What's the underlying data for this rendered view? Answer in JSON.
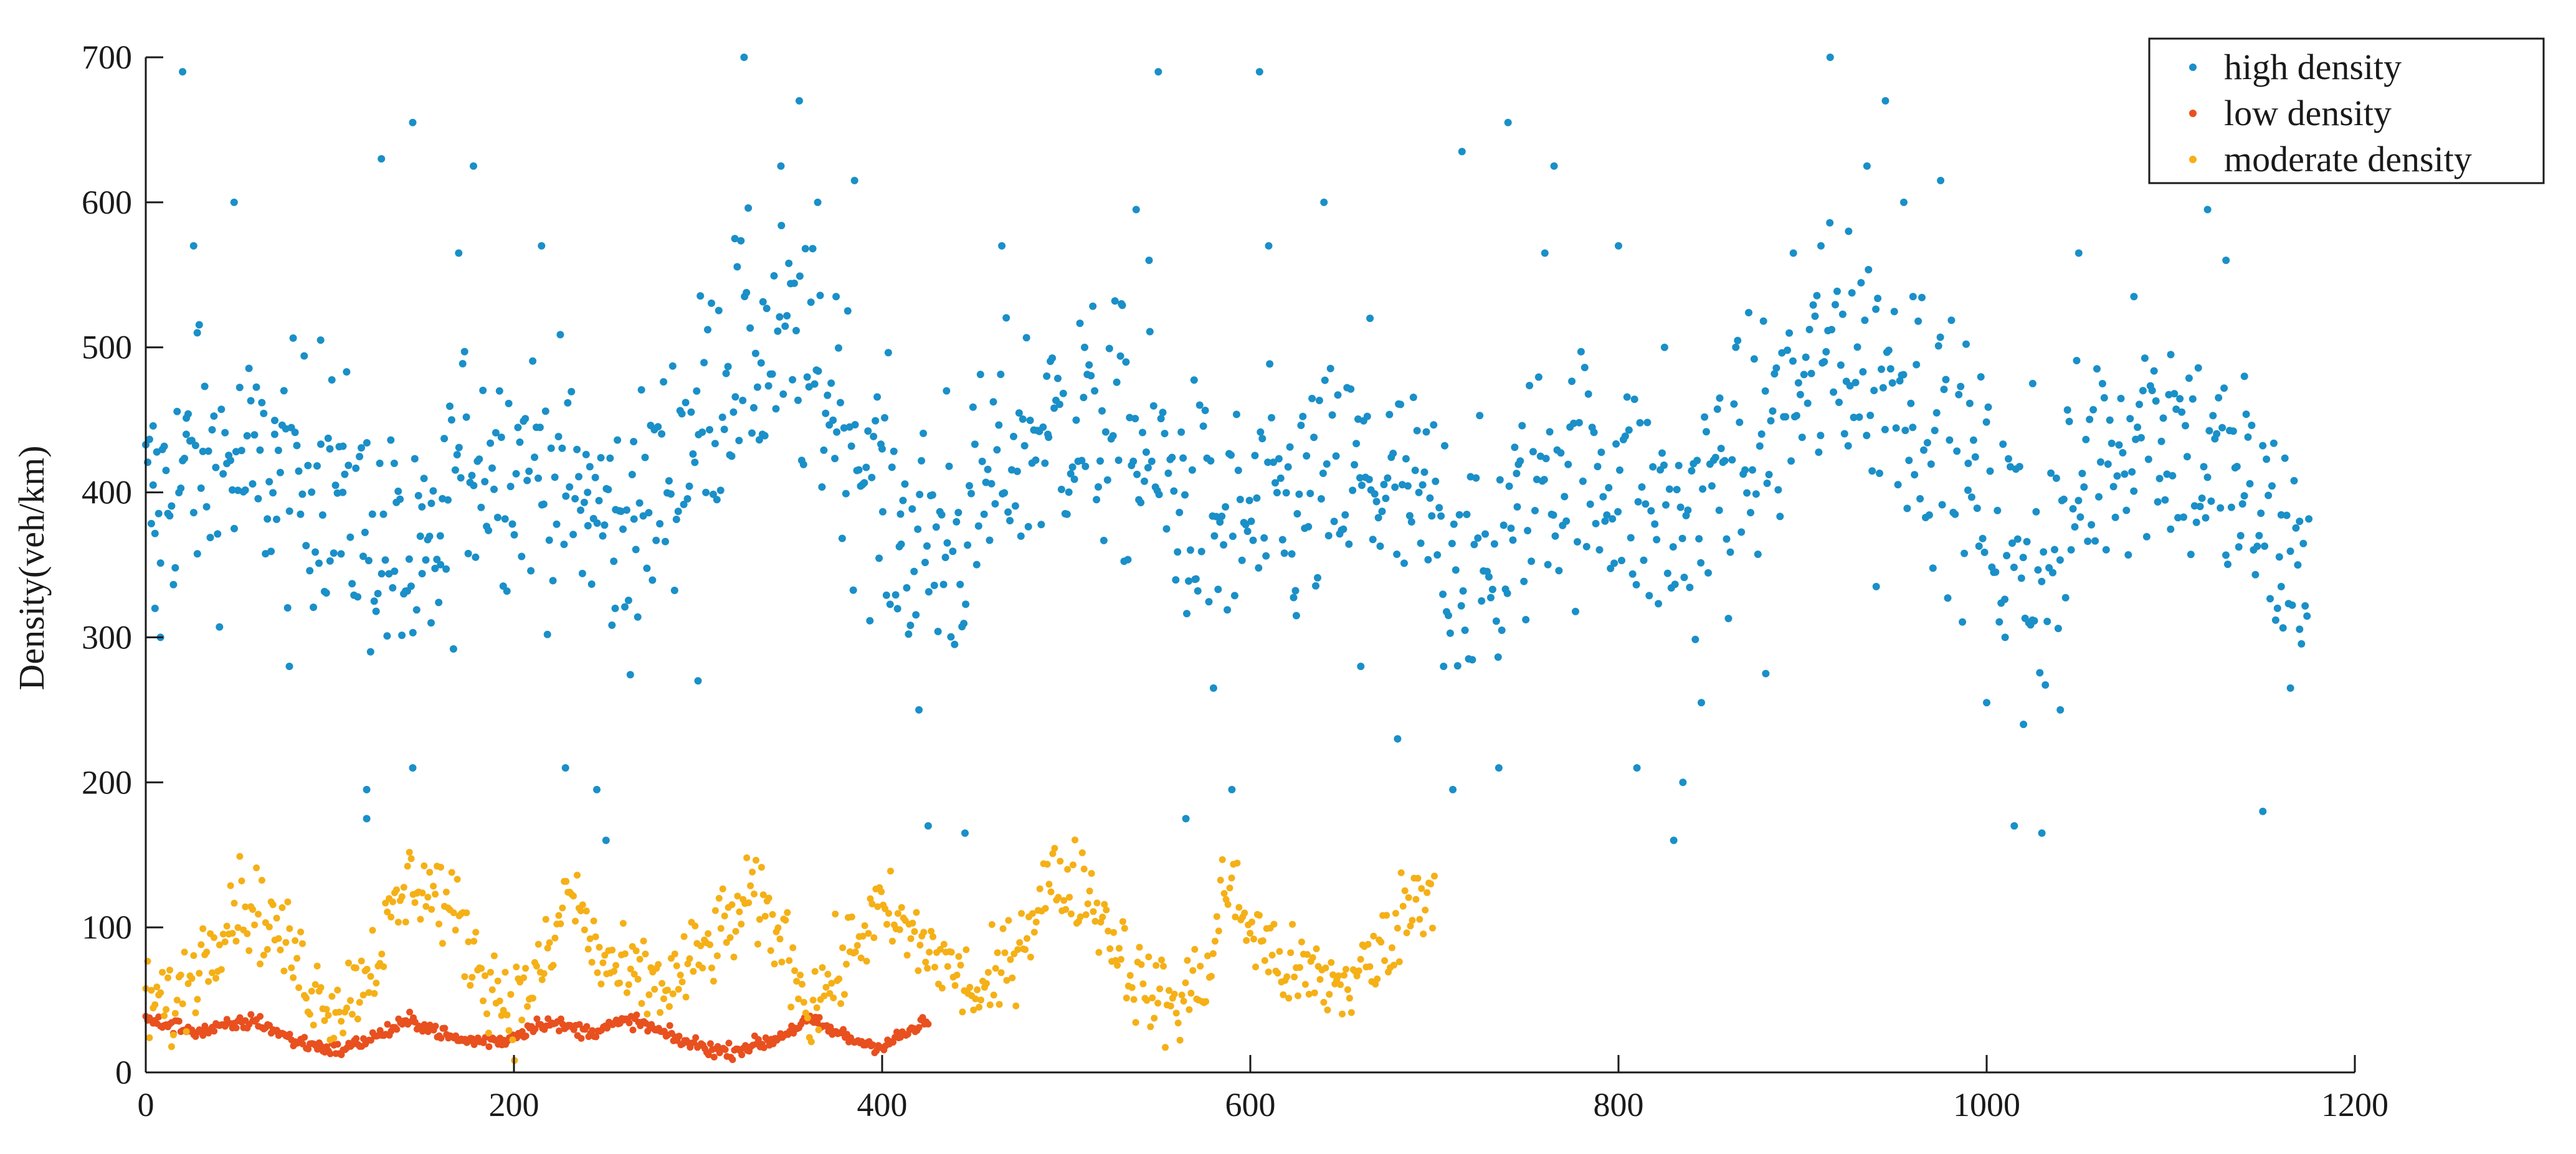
{
  "chart_data": {
    "type": "scatter",
    "title": "",
    "xlabel": "",
    "ylabel": "Density(veh/km)",
    "xlim": [
      0,
      1200
    ],
    "ylim": [
      0,
      700
    ],
    "x_ticks": [
      0,
      200,
      400,
      600,
      800,
      1000,
      1200
    ],
    "y_ticks": [
      0,
      100,
      200,
      300,
      400,
      500,
      600,
      700
    ],
    "grid": false,
    "legend_position": "top-right",
    "series": [
      {
        "name": "high density",
        "color": "#1a8fc8",
        "n_points": 1175,
        "x_range": [
          0,
          1175
        ],
        "pattern": "repeats with period ~585 (two cycles)",
        "trend_anchors": [
          [
            0,
            390
          ],
          [
            30,
            420
          ],
          [
            60,
            415
          ],
          [
            100,
            405
          ],
          [
            130,
            360
          ],
          [
            150,
            330
          ],
          [
            175,
            430
          ],
          [
            210,
            420
          ],
          [
            240,
            390
          ],
          [
            265,
            370
          ],
          [
            290,
            430
          ],
          [
            320,
            490
          ],
          [
            350,
            500
          ],
          [
            380,
            450
          ],
          [
            410,
            370
          ],
          [
            440,
            360
          ],
          [
            470,
            430
          ],
          [
            500,
            450
          ],
          [
            530,
            440
          ],
          [
            560,
            400
          ],
          [
            585,
            370
          ],
          [
            620,
            390
          ],
          [
            660,
            410
          ],
          [
            700,
            380
          ],
          [
            730,
            340
          ],
          [
            760,
            420
          ],
          [
            800,
            410
          ],
          [
            830,
            370
          ],
          [
            880,
            440
          ],
          [
            920,
            500
          ],
          [
            960,
            470
          ],
          [
            1000,
            390
          ],
          [
            1030,
            340
          ],
          [
            1060,
            430
          ],
          [
            1090,
            450
          ],
          [
            1120,
            420
          ],
          [
            1150,
            380
          ],
          [
            1175,
            345
          ]
        ],
        "sample_points": [
          [
            4,
            405
          ],
          [
            5,
            320
          ],
          [
            8,
            300
          ],
          [
            20,
            690
          ],
          [
            22,
            440
          ],
          [
            26,
            570
          ],
          [
            28,
            510
          ],
          [
            48,
            600
          ],
          [
            70,
            440
          ],
          [
            78,
            280
          ],
          [
            95,
            505
          ],
          [
            100,
            430
          ],
          [
            107,
            400
          ],
          [
            120,
            175
          ],
          [
            120,
            195
          ],
          [
            128,
            630
          ],
          [
            135,
            420
          ],
          [
            145,
            655
          ],
          [
            145,
            210
          ],
          [
            150,
            390
          ],
          [
            155,
            310
          ],
          [
            160,
            370
          ],
          [
            170,
            565
          ],
          [
            178,
            625
          ],
          [
            215,
            570
          ],
          [
            228,
            210
          ],
          [
            240,
            400
          ],
          [
            245,
            195
          ],
          [
            250,
            160
          ],
          [
            255,
            320
          ],
          [
            265,
            435
          ],
          [
            300,
            270
          ],
          [
            320,
            575
          ],
          [
            325,
            700
          ],
          [
            335,
            440
          ],
          [
            345,
            625
          ],
          [
            355,
            670
          ],
          [
            365,
            600
          ],
          [
            375,
            535
          ],
          [
            385,
            615
          ],
          [
            400,
            430
          ],
          [
            410,
            385
          ],
          [
            420,
            250
          ],
          [
            425,
            170
          ],
          [
            435,
            470
          ],
          [
            445,
            165
          ],
          [
            465,
            570
          ],
          [
            490,
            440
          ],
          [
            510,
            500
          ],
          [
            530,
            530
          ],
          [
            538,
            595
          ],
          [
            545,
            560
          ],
          [
            550,
            690
          ],
          [
            565,
            175
          ],
          [
            570,
            340
          ],
          [
            580,
            265
          ],
          [
            590,
            195
          ],
          [
            605,
            690
          ],
          [
            610,
            570
          ],
          [
            625,
            315
          ],
          [
            640,
            600
          ],
          [
            660,
            280
          ],
          [
            665,
            520
          ],
          [
            680,
            230
          ],
          [
            705,
            280
          ],
          [
            710,
            195
          ],
          [
            715,
            635
          ],
          [
            735,
            210
          ],
          [
            740,
            655
          ],
          [
            745,
            390
          ],
          [
            760,
            565
          ],
          [
            765,
            625
          ],
          [
            800,
            570
          ],
          [
            810,
            210
          ],
          [
            825,
            500
          ],
          [
            830,
            160
          ],
          [
            835,
            200
          ],
          [
            845,
            255
          ],
          [
            855,
            465
          ],
          [
            880,
            275
          ],
          [
            895,
            565
          ],
          [
            910,
            570
          ],
          [
            915,
            700
          ],
          [
            925,
            580
          ],
          [
            935,
            625
          ],
          [
            940,
            335
          ],
          [
            945,
            670
          ],
          [
            955,
            600
          ],
          [
            960,
            535
          ],
          [
            975,
            615
          ],
          [
            990,
            420
          ],
          [
            1000,
            255
          ],
          [
            1010,
            300
          ],
          [
            1015,
            170
          ],
          [
            1020,
            240
          ],
          [
            1025,
            475
          ],
          [
            1030,
            165
          ],
          [
            1040,
            250
          ],
          [
            1050,
            565
          ],
          [
            1080,
            535
          ],
          [
            1100,
            495
          ],
          [
            1120,
            595
          ],
          [
            1130,
            560
          ],
          [
            1140,
            480
          ],
          [
            1150,
            180
          ],
          [
            1160,
            335
          ],
          [
            1165,
            265
          ],
          [
            1170,
            380
          ]
        ]
      },
      {
        "name": "low density",
        "color": "#e8501f",
        "n_points": 425,
        "x_range": [
          0,
          425
        ],
        "trend_anchors": [
          [
            0,
            36
          ],
          [
            30,
            28
          ],
          [
            60,
            36
          ],
          [
            80,
            22
          ],
          [
            105,
            15
          ],
          [
            125,
            25
          ],
          [
            145,
            36
          ],
          [
            170,
            22
          ],
          [
            195,
            22
          ],
          [
            215,
            35
          ],
          [
            240,
            28
          ],
          [
            265,
            36
          ],
          [
            290,
            22
          ],
          [
            315,
            14
          ],
          [
            340,
            22
          ],
          [
            360,
            36
          ],
          [
            385,
            22
          ],
          [
            400,
            18
          ],
          [
            425,
            35
          ]
        ]
      },
      {
        "name": "moderate density",
        "color": "#f5b017",
        "n_points": 700,
        "x_range": [
          0,
          700
        ],
        "trend_anchors": [
          [
            0,
            50
          ],
          [
            15,
            45
          ],
          [
            35,
            90
          ],
          [
            50,
            120
          ],
          [
            70,
            100
          ],
          [
            90,
            60
          ],
          [
            105,
            45
          ],
          [
            125,
            80
          ],
          [
            145,
            135
          ],
          [
            165,
            115
          ],
          [
            185,
            65
          ],
          [
            200,
            45
          ],
          [
            220,
            80
          ],
          [
            230,
            130
          ],
          [
            245,
            80
          ],
          [
            260,
            65
          ],
          [
            285,
            60
          ],
          [
            305,
            85
          ],
          [
            330,
            120
          ],
          [
            350,
            85
          ],
          [
            360,
            45
          ],
          [
            380,
            75
          ],
          [
            390,
            100
          ],
          [
            400,
            110
          ],
          [
            430,
            80
          ],
          [
            455,
            50
          ],
          [
            470,
            80
          ],
          [
            490,
            130
          ],
          [
            510,
            130
          ],
          [
            540,
            60
          ],
          [
            560,
            45
          ],
          [
            580,
            75
          ],
          [
            585,
            135
          ],
          [
            600,
            100
          ],
          [
            620,
            70
          ],
          [
            650,
            60
          ],
          [
            670,
            80
          ],
          [
            685,
            115
          ],
          [
            700,
            130
          ]
        ]
      }
    ]
  }
}
